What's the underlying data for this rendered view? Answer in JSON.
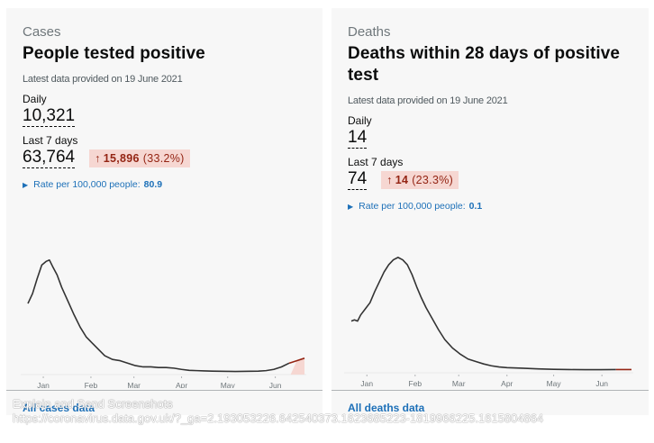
{
  "cards": [
    {
      "caption": "Cases",
      "title": "People tested positive",
      "latest": "Latest data provided on 19 June 2021",
      "daily_label": "Daily",
      "daily_value": "10,321",
      "week_label": "Last 7 days",
      "week_value": "63,764",
      "change_arrow": "↑",
      "change_value": "15,896",
      "change_pct": "(33.2%)",
      "rate_label": "Rate per 100,000 people:",
      "rate_value": "80.9",
      "footer_link": "All cases data",
      "colors": {
        "line": "#333333",
        "highlight": "#942514",
        "highlight_fill": "#f6d7d2"
      }
    },
    {
      "caption": "Deaths",
      "title": "Deaths within 28 days of positive test",
      "latest": "Latest data provided on 19 June 2021",
      "daily_label": "Daily",
      "daily_value": "14",
      "week_label": "Last 7 days",
      "week_value": "74",
      "change_arrow": "↑",
      "change_value": "14",
      "change_pct": "(23.3%)",
      "rate_label": "Rate per 100,000 people:",
      "rate_value": "0.1",
      "footer_link": "All deaths data",
      "colors": {
        "line": "#333333",
        "highlight": "#942514",
        "highlight_fill": "#f6d7d2"
      }
    }
  ],
  "overlay": {
    "line1": "Explain and Send Screenshots",
    "line2": "https://coronavirus.data.gov.uk/?_ga=2.193053226.642540373.1623685223-1819966225.1615804864"
  },
  "chart_data": [
    {
      "type": "line",
      "title": "People tested positive (7-day average)",
      "xlabel": "",
      "ylabel": "",
      "x_ticks": [
        "Jan",
        "Feb",
        "Mar",
        "Apr",
        "May",
        "Jun"
      ],
      "x_range_days": [
        0,
        180
      ],
      "tick_days": [
        10,
        41,
        69,
        100,
        130,
        161
      ],
      "ylim": [
        0,
        1
      ],
      "highlight_from_day": 171,
      "x": [
        0,
        3,
        6,
        9,
        12,
        14,
        16,
        19,
        22,
        26,
        30,
        34,
        38,
        42,
        46,
        50,
        55,
        60,
        65,
        70,
        75,
        80,
        85,
        90,
        95,
        100,
        105,
        110,
        115,
        120,
        125,
        130,
        135,
        140,
        145,
        150,
        155,
        160,
        165,
        170,
        175,
        180
      ],
      "y": [
        0.55,
        0.63,
        0.75,
        0.86,
        0.89,
        0.9,
        0.85,
        0.78,
        0.68,
        0.57,
        0.46,
        0.36,
        0.28,
        0.23,
        0.18,
        0.13,
        0.1,
        0.09,
        0.07,
        0.05,
        0.04,
        0.04,
        0.035,
        0.035,
        0.03,
        0.02,
        0.012,
        0.01,
        0.008,
        0.006,
        0.005,
        0.004,
        0.003,
        0.004,
        0.005,
        0.006,
        0.01,
        0.02,
        0.04,
        0.07,
        0.09,
        0.11
      ]
    },
    {
      "type": "line",
      "title": "Deaths within 28 days of positive test (7-day average)",
      "xlabel": "",
      "ylabel": "",
      "x_ticks": [
        "Jan",
        "Feb",
        "Mar",
        "Apr",
        "May",
        "Jun"
      ],
      "x_range_days": [
        0,
        180
      ],
      "tick_days": [
        10,
        41,
        69,
        100,
        130,
        161
      ],
      "ylim": [
        0,
        1
      ],
      "highlight_from_day": 171,
      "x": [
        0,
        2,
        4,
        6,
        9,
        12,
        15,
        18,
        21,
        24,
        27,
        30,
        33,
        36,
        39,
        42,
        45,
        48,
        52,
        56,
        60,
        65,
        70,
        75,
        80,
        85,
        90,
        95,
        100,
        110,
        120,
        130,
        140,
        150,
        160,
        170,
        180
      ],
      "y": [
        0.4,
        0.41,
        0.4,
        0.45,
        0.5,
        0.55,
        0.64,
        0.72,
        0.8,
        0.86,
        0.9,
        0.92,
        0.9,
        0.86,
        0.78,
        0.68,
        0.59,
        0.51,
        0.42,
        0.33,
        0.25,
        0.18,
        0.13,
        0.09,
        0.07,
        0.05,
        0.035,
        0.025,
        0.02,
        0.015,
        0.01,
        0.006,
        0.004,
        0.003,
        0.003,
        0.004,
        0.004
      ]
    }
  ]
}
